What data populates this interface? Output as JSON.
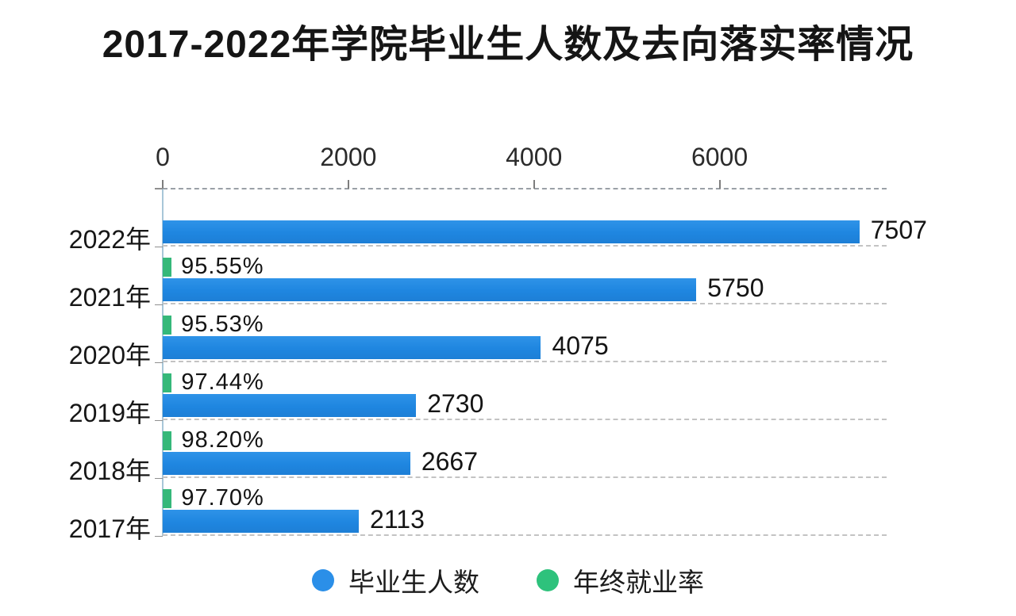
{
  "chart_data": {
    "type": "bar",
    "orientation": "horizontal",
    "title": "2017-2022年学院毕业生人数及去向落实率情况",
    "categories": [
      "2022年",
      "2021年",
      "2020年",
      "2019年",
      "2018年",
      "2017年"
    ],
    "series": [
      {
        "name": "毕业生人数",
        "color": "#2087e2",
        "values": [
          7507,
          5750,
          4075,
          2730,
          2667,
          2113
        ],
        "labels": [
          "7507",
          "5750",
          "4075",
          "2730",
          "2667",
          "2113"
        ]
      },
      {
        "name": "年终就业率",
        "color": "#35b87a",
        "values": [
          null,
          95.55,
          95.53,
          97.44,
          98.2,
          97.7
        ],
        "labels": [
          "",
          "95.55%",
          "95.53%",
          "97.44%",
          "98.20%",
          "97.70%"
        ]
      }
    ],
    "x_axis": {
      "ticks": [
        0,
        2000,
        4000,
        6000
      ],
      "tick_labels": [
        "0",
        "2000",
        "4000",
        "6000"
      ],
      "min": 0,
      "max": 7800
    },
    "grid": "dashed horizontal row separators, dashed top axis",
    "legend_position": "bottom",
    "colors": {
      "bar_blue": "#2087e2",
      "bar_green": "#35b87a",
      "legend_blue": "#2b8fe8",
      "legend_green": "#2ec27c",
      "title_text": "#151515"
    }
  }
}
